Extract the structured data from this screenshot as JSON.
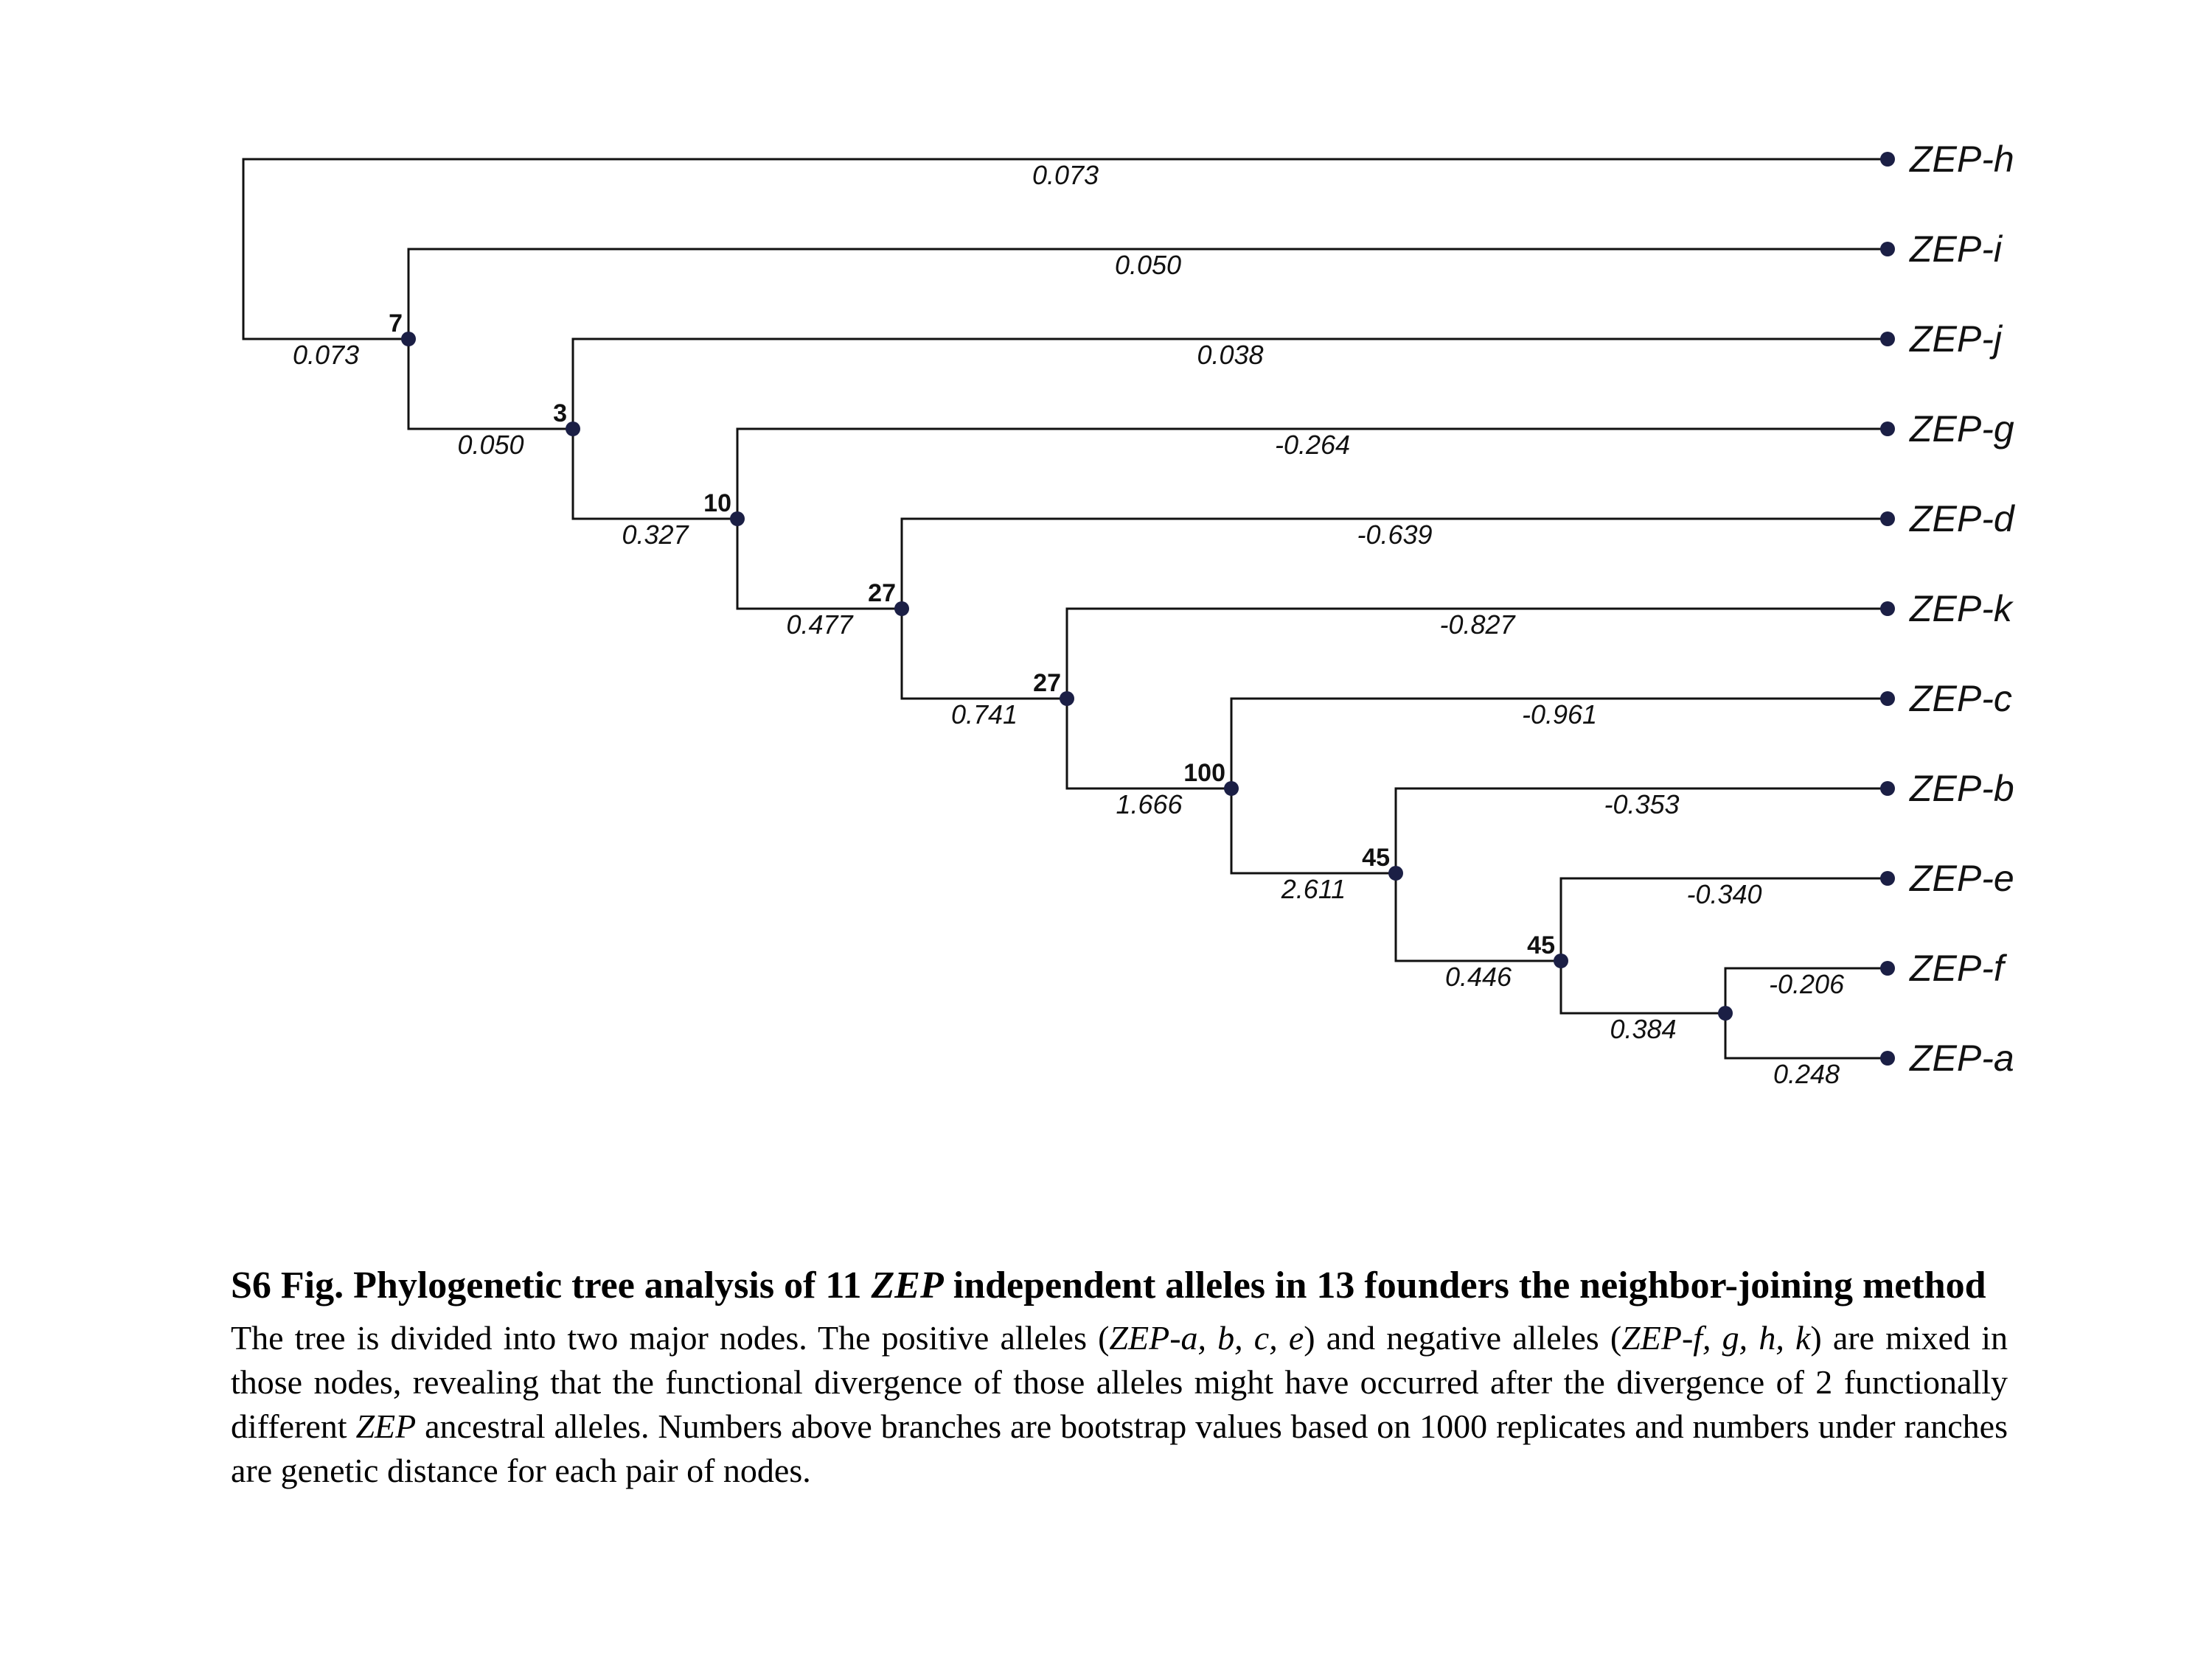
{
  "tree": {
    "tips": [
      {
        "label": "ZEP-h",
        "dist": "0.073"
      },
      {
        "label": "ZEP-i",
        "dist": "0.050"
      },
      {
        "label": "ZEP-j",
        "dist": "0.038"
      },
      {
        "label": "ZEP-g",
        "dist": "-0.264"
      },
      {
        "label": "ZEP-d",
        "dist": "-0.639"
      },
      {
        "label": "ZEP-k",
        "dist": "-0.827"
      },
      {
        "label": "ZEP-c",
        "dist": "-0.961"
      },
      {
        "label": "ZEP-b",
        "dist": "-0.353"
      },
      {
        "label": "ZEP-e",
        "dist": "-0.340"
      },
      {
        "label": "ZEP-f",
        "dist": "-0.206"
      },
      {
        "label": "ZEP-a",
        "dist": "0.248"
      }
    ],
    "nodes": [
      {
        "bootstrap": "",
        "dist": "0.073"
      },
      {
        "bootstrap": "7",
        "dist": "0.050"
      },
      {
        "bootstrap": "3",
        "dist": "0.327"
      },
      {
        "bootstrap": "10",
        "dist": "0.477"
      },
      {
        "bootstrap": "27",
        "dist": "0.741"
      },
      {
        "bootstrap": "27",
        "dist": "1.666"
      },
      {
        "bootstrap": "100",
        "dist": "2.611"
      },
      {
        "bootstrap": "45",
        "dist": "0.446"
      },
      {
        "bootstrap": "45",
        "dist": "0.384"
      }
    ]
  },
  "caption": {
    "title_part1": "S6 Fig. Phylogenetic tree analysis of 11 ",
    "title_italic": "ZEP",
    "title_part2": " independent alleles in 13 founders the neighbor-joining method",
    "body_1": "The tree is divided into two major nodes. The positive alleles (",
    "body_i1": "ZEP-a, b, c, e",
    "body_2": ") and negative alleles (",
    "body_i2": "ZEP-f, g, h, k",
    "body_3": ") are mixed in those nodes, revealing that the functional divergence of those alleles might have occurred after the divergence of 2 functionally different ",
    "body_i3": "ZEP",
    "body_4": " ancestral alleles.   Numbers above branches are bootstrap values based on 1000 replicates and numbers under ranches are genetic distance for each pair of nodes."
  },
  "colors": {
    "node": "#1b1f45",
    "line": "#111111"
  }
}
